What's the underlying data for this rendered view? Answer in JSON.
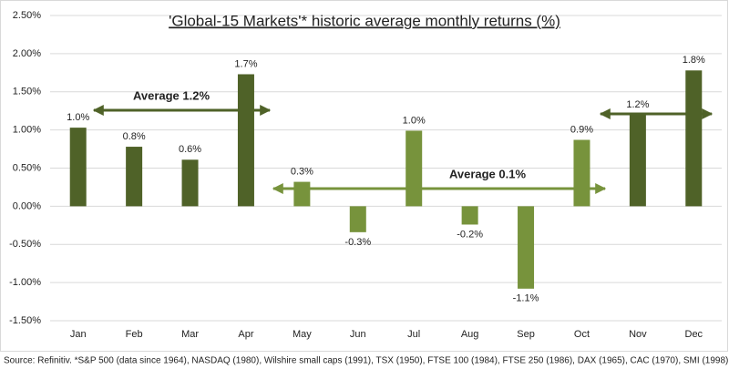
{
  "chart_data": {
    "type": "bar",
    "title": "'Global-15 Markets'* historic average monthly returns (%)",
    "categories": [
      "Jan",
      "Feb",
      "Mar",
      "Apr",
      "May",
      "Jun",
      "Jul",
      "Aug",
      "Sep",
      "Oct",
      "Nov",
      "Dec"
    ],
    "values": [
      1.03,
      0.78,
      0.61,
      1.73,
      0.32,
      -0.34,
      0.99,
      -0.24,
      -1.08,
      0.87,
      1.2,
      1.78
    ],
    "value_labels": [
      "1.0%",
      "0.8%",
      "0.6%",
      "1.7%",
      "0.3%",
      "-0.3%",
      "1.0%",
      "-0.2%",
      "-1.1%",
      "0.9%",
      "1.2%",
      "1.8%"
    ],
    "colors": [
      "#4f6228",
      "#4f6228",
      "#4f6228",
      "#4f6228",
      "#77933c",
      "#77933c",
      "#77933c",
      "#77933c",
      "#77933c",
      "#77933c",
      "#4f6228",
      "#4f6228"
    ],
    "ylim": [
      -1.5,
      2.5
    ],
    "yticks": [
      {
        "value": -1.5,
        "label": "-1.50%"
      },
      {
        "value": -1,
        "label": "-1.00%"
      },
      {
        "value": -0.5,
        "label": "-0.50%"
      },
      {
        "value": 0,
        "label": "0.00%"
      },
      {
        "value": 0.5,
        "label": "0.50%"
      },
      {
        "value": 1,
        "label": "1.00%"
      },
      {
        "value": 1.5,
        "label": "1.50%"
      },
      {
        "value": 2,
        "label": "2.00%"
      },
      {
        "value": 2.5,
        "label": "2.50%"
      }
    ],
    "grid": true,
    "annotations": [
      "Average 1.2%",
      "Average 0.1%"
    ],
    "source": "Source: Refinitiv. *S&P 500 (data since 1964), NASDAQ (1980), Wilshire small caps (1991), TSX (1950), FTSE 100 (1984), FTSE 250 (1986), DAX (1965), CAC (1970), SMI (1998),"
  }
}
